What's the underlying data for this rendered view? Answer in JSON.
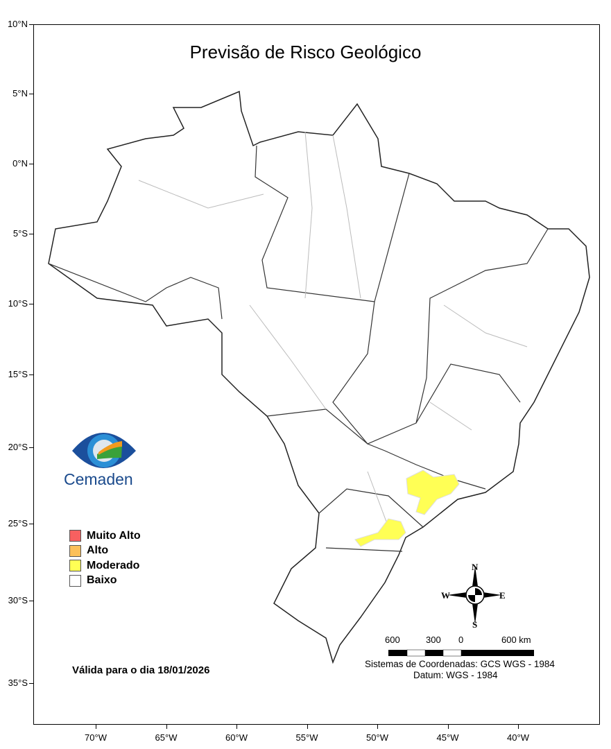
{
  "title": "Previsão de Risco Geológico",
  "lat_ticks": [
    "10°N",
    "5°N",
    "0°N",
    "5°S",
    "10°S",
    "15°S",
    "20°S",
    "25°S",
    "30°S",
    "35°S"
  ],
  "lon_ticks": [
    "70°W",
    "65°W",
    "60°W",
    "55°W",
    "50°W",
    "45°W",
    "40°W"
  ],
  "logo": {
    "text": "Cemaden"
  },
  "legend": [
    {
      "label": "Muito Alto",
      "color": "#f86060"
    },
    {
      "label": "Alto",
      "color": "#fcc05a"
    },
    {
      "label": "Moderado",
      "color": "#ffff55"
    },
    {
      "label": "Baixo",
      "color": "#ffffff"
    }
  ],
  "valid_text": "Válida para o dia 18/01/2026",
  "compass": {
    "n": "N",
    "s": "S",
    "e": "E",
    "w": "W"
  },
  "scale": {
    "labels": [
      "600",
      "300",
      "0",
      "600 km"
    ]
  },
  "crs": "Sistemas de Coordenadas: GCS WGS - 1984",
  "datum": "Datum: WGS - 1984",
  "highlighted_risk": "Moderado"
}
